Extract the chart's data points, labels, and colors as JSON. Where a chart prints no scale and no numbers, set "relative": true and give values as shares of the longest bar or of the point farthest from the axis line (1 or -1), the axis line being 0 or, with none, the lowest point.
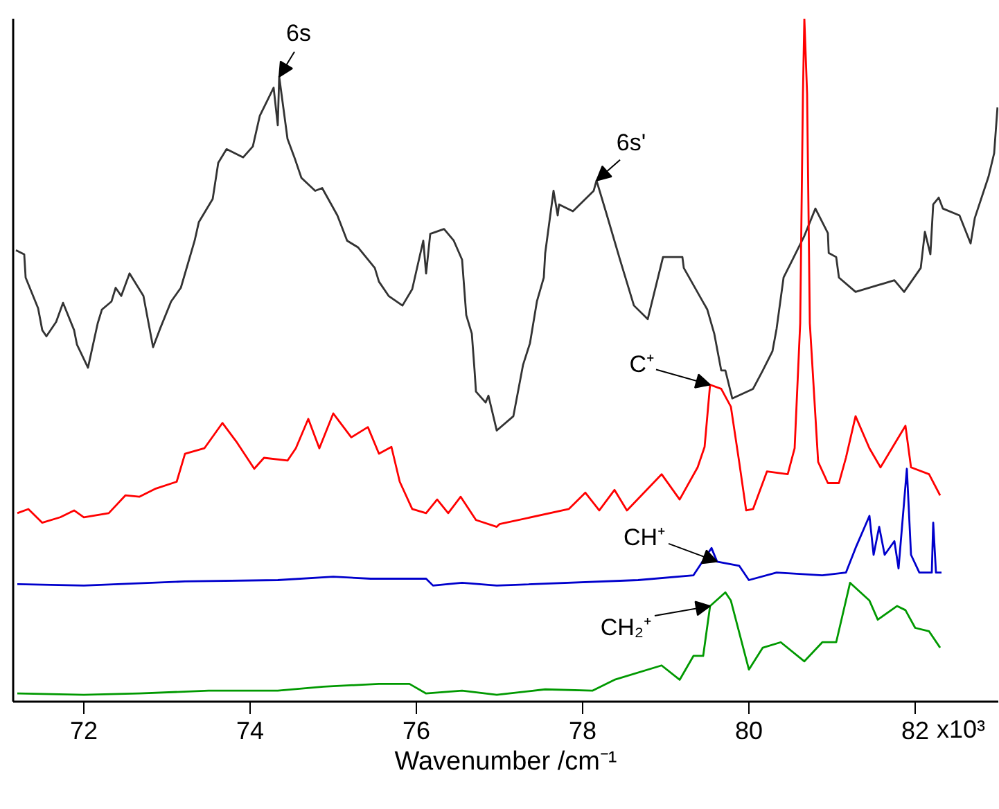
{
  "chart_data": {
    "type": "line",
    "relative": true,
    "xlabel": "Wavenumber /cm⁻¹",
    "xlim": [
      71.15,
      83.0
    ],
    "xticks": [
      72,
      74,
      76,
      78,
      80,
      82
    ],
    "grid": false,
    "marker": "none",
    "line_style": "solid",
    "series": [
      {
        "color": "#333333",
        "x": [
          71.183,
          71.283,
          71.3,
          71.45,
          71.5,
          71.55,
          71.667,
          71.75,
          71.883,
          71.917,
          72.05,
          72.167,
          72.217,
          72.333,
          72.383,
          72.45,
          72.55,
          72.717,
          72.833,
          72.917,
          73.05,
          73.167,
          73.333,
          73.383,
          73.55,
          73.617,
          73.717,
          73.917,
          74.033,
          74.117,
          74.283,
          74.333,
          74.35,
          74.45,
          74.533,
          74.617,
          74.783,
          74.867,
          75.05,
          75.167,
          75.3,
          75.5,
          75.55,
          75.667,
          75.833,
          75.95,
          76.083,
          76.117,
          76.167,
          76.333,
          76.45,
          76.55,
          76.6,
          76.667,
          76.7,
          76.717,
          76.833,
          76.867,
          76.967,
          77.167,
          77.283,
          77.367,
          77.45,
          77.533,
          77.55,
          77.65,
          77.7,
          77.717,
          77.883,
          78.133,
          78.167,
          78.283,
          78.45,
          78.617,
          78.783,
          78.967,
          79.2,
          79.217,
          79.5,
          79.583,
          79.667,
          79.717,
          79.8,
          80.05,
          80.167,
          80.283,
          80.333,
          80.417,
          80.5,
          80.667,
          80.8,
          80.95,
          80.96,
          81.05,
          81.083,
          81.283,
          81.75,
          81.867,
          82.067,
          82.117,
          82.183,
          82.217,
          82.283,
          82.333,
          82.533,
          82.667,
          82.717,
          82.883,
          82.95,
          82.99
        ],
        "values": [
          0.661,
          0.655,
          0.621,
          0.576,
          0.544,
          0.535,
          0.556,
          0.584,
          0.544,
          0.523,
          0.489,
          0.554,
          0.574,
          0.586,
          0.606,
          0.594,
          0.627,
          0.594,
          0.519,
          0.546,
          0.586,
          0.606,
          0.675,
          0.702,
          0.736,
          0.789,
          0.809,
          0.797,
          0.813,
          0.858,
          0.899,
          0.844,
          0.915,
          0.824,
          0.797,
          0.767,
          0.748,
          0.752,
          0.712,
          0.675,
          0.665,
          0.635,
          0.615,
          0.594,
          0.58,
          0.604,
          0.675,
          0.627,
          0.685,
          0.692,
          0.675,
          0.647,
          0.566,
          0.539,
          0.485,
          0.454,
          0.438,
          0.448,
          0.397,
          0.418,
          0.493,
          0.525,
          0.586,
          0.621,
          0.657,
          0.748,
          0.712,
          0.728,
          0.718,
          0.748,
          0.763,
          0.716,
          0.647,
          0.58,
          0.56,
          0.651,
          0.651,
          0.635,
          0.574,
          0.539,
          0.485,
          0.485,
          0.444,
          0.458,
          0.485,
          0.513,
          0.546,
          0.621,
          0.641,
          0.682,
          0.722,
          0.686,
          0.657,
          0.651,
          0.621,
          0.6,
          0.617,
          0.6,
          0.635,
          0.688,
          0.655,
          0.728,
          0.738,
          0.722,
          0.712,
          0.671,
          0.708,
          0.769,
          0.803,
          0.87
        ]
      },
      {
        "color": "#ff0000",
        "x": [
          71.2,
          71.333,
          71.5,
          71.717,
          71.883,
          72.0,
          72.3,
          72.5,
          72.667,
          72.867,
          73.117,
          73.217,
          73.45,
          73.667,
          73.833,
          74.05,
          74.167,
          74.45,
          74.55,
          74.7,
          74.833,
          75.0,
          75.217,
          75.417,
          75.55,
          75.7,
          75.8,
          75.95,
          76.117,
          76.25,
          76.383,
          76.533,
          76.717,
          76.967,
          77.0,
          77.833,
          78.033,
          78.2,
          78.383,
          78.533,
          78.95,
          79.167,
          79.383,
          79.467,
          79.533,
          79.667,
          79.783,
          79.883,
          79.967,
          80.05,
          80.217,
          80.467,
          80.55,
          80.617,
          80.65,
          80.667,
          80.7,
          80.733,
          80.833,
          80.95,
          81.083,
          81.167,
          81.283,
          81.45,
          81.583,
          81.75,
          81.883,
          81.95,
          82.167,
          82.3
        ],
        "values": [
          0.276,
          0.282,
          0.262,
          0.27,
          0.28,
          0.27,
          0.276,
          0.302,
          0.3,
          0.312,
          0.322,
          0.363,
          0.371,
          0.408,
          0.381,
          0.341,
          0.357,
          0.353,
          0.371,
          0.414,
          0.371,
          0.422,
          0.387,
          0.402,
          0.363,
          0.373,
          0.322,
          0.282,
          0.276,
          0.296,
          0.276,
          0.3,
          0.266,
          0.256,
          0.26,
          0.282,
          0.306,
          0.28,
          0.31,
          0.28,
          0.333,
          0.296,
          0.343,
          0.373,
          0.464,
          0.458,
          0.432,
          0.351,
          0.28,
          0.282,
          0.337,
          0.333,
          0.371,
          0.554,
          0.89,
          1.0,
          0.89,
          0.554,
          0.351,
          0.32,
          0.32,
          0.357,
          0.418,
          0.371,
          0.343,
          0.377,
          0.404,
          0.343,
          0.333,
          0.302
        ]
      },
      {
        "color": "#0000cc",
        "x": [
          71.2,
          72.0,
          73.217,
          74.333,
          75.0,
          75.45,
          76.117,
          76.2,
          76.55,
          76.967,
          78.667,
          79.333,
          79.55,
          79.617,
          79.883,
          80.0,
          80.333,
          80.883,
          81.167,
          81.283,
          81.45,
          81.5,
          81.567,
          81.633,
          81.75,
          81.8,
          81.9,
          81.95,
          82.05,
          82.2,
          82.217,
          82.25,
          82.317
        ],
        "values": [
          0.172,
          0.17,
          0.176,
          0.178,
          0.183,
          0.18,
          0.18,
          0.17,
          0.174,
          0.17,
          0.178,
          0.185,
          0.225,
          0.205,
          0.199,
          0.178,
          0.189,
          0.185,
          0.189,
          0.225,
          0.272,
          0.215,
          0.256,
          0.215,
          0.235,
          0.195,
          0.341,
          0.215,
          0.189,
          0.189,
          0.262,
          0.189,
          0.189
        ]
      },
      {
        "color": "#009900",
        "x": [
          71.2,
          72.0,
          72.667,
          73.5,
          74.333,
          74.883,
          75.55,
          75.917,
          76.117,
          76.55,
          76.967,
          77.55,
          78.117,
          78.383,
          78.95,
          79.167,
          79.333,
          79.45,
          79.533,
          79.717,
          79.783,
          80.0,
          80.167,
          80.383,
          80.667,
          80.883,
          81.05,
          81.217,
          81.45,
          81.55,
          81.783,
          81.883,
          82.0,
          82.167,
          82.3
        ],
        "values": [
          0.012,
          0.01,
          0.012,
          0.016,
          0.016,
          0.022,
          0.026,
          0.026,
          0.012,
          0.016,
          0.01,
          0.018,
          0.016,
          0.032,
          0.053,
          0.032,
          0.067,
          0.067,
          0.14,
          0.16,
          0.148,
          0.047,
          0.079,
          0.087,
          0.059,
          0.087,
          0.087,
          0.174,
          0.148,
          0.12,
          0.14,
          0.134,
          0.108,
          0.103,
          0.079
        ]
      }
    ],
    "annotations": [
      {
        "text": "6s",
        "x": 74.35,
        "y": 0.915
      },
      {
        "text": "6s'",
        "x": 78.167,
        "y": 0.763
      },
      {
        "text": "C⁺",
        "x": 79.533,
        "y": 0.464
      },
      {
        "text": "CH⁺",
        "x": 79.617,
        "y": 0.205
      },
      {
        "text": "CH₂⁺",
        "x": 79.533,
        "y": 0.14
      },
      "x10³"
    ]
  }
}
